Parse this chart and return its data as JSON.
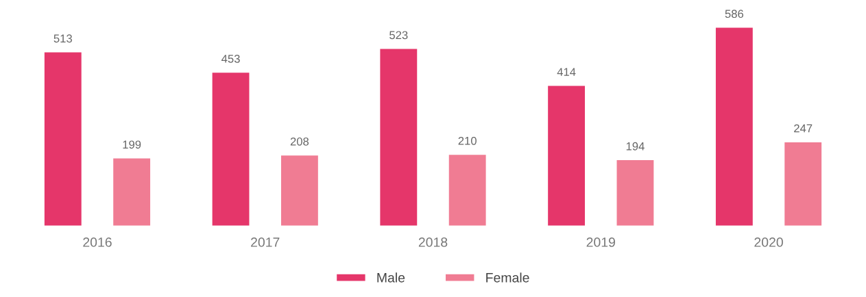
{
  "chart_data": {
    "type": "bar",
    "categories": [
      "2016",
      "2017",
      "2018",
      "2019",
      "2020"
    ],
    "series": [
      {
        "name": "Male",
        "color": "#e5366a",
        "values": [
          513,
          453,
          523,
          414,
          586
        ]
      },
      {
        "name": "Female",
        "color": "#f07c93",
        "values": [
          199,
          208,
          210,
          194,
          247
        ]
      }
    ],
    "data_labels": true,
    "legend": "bottom",
    "grid": false,
    "tick_labels": "x"
  }
}
